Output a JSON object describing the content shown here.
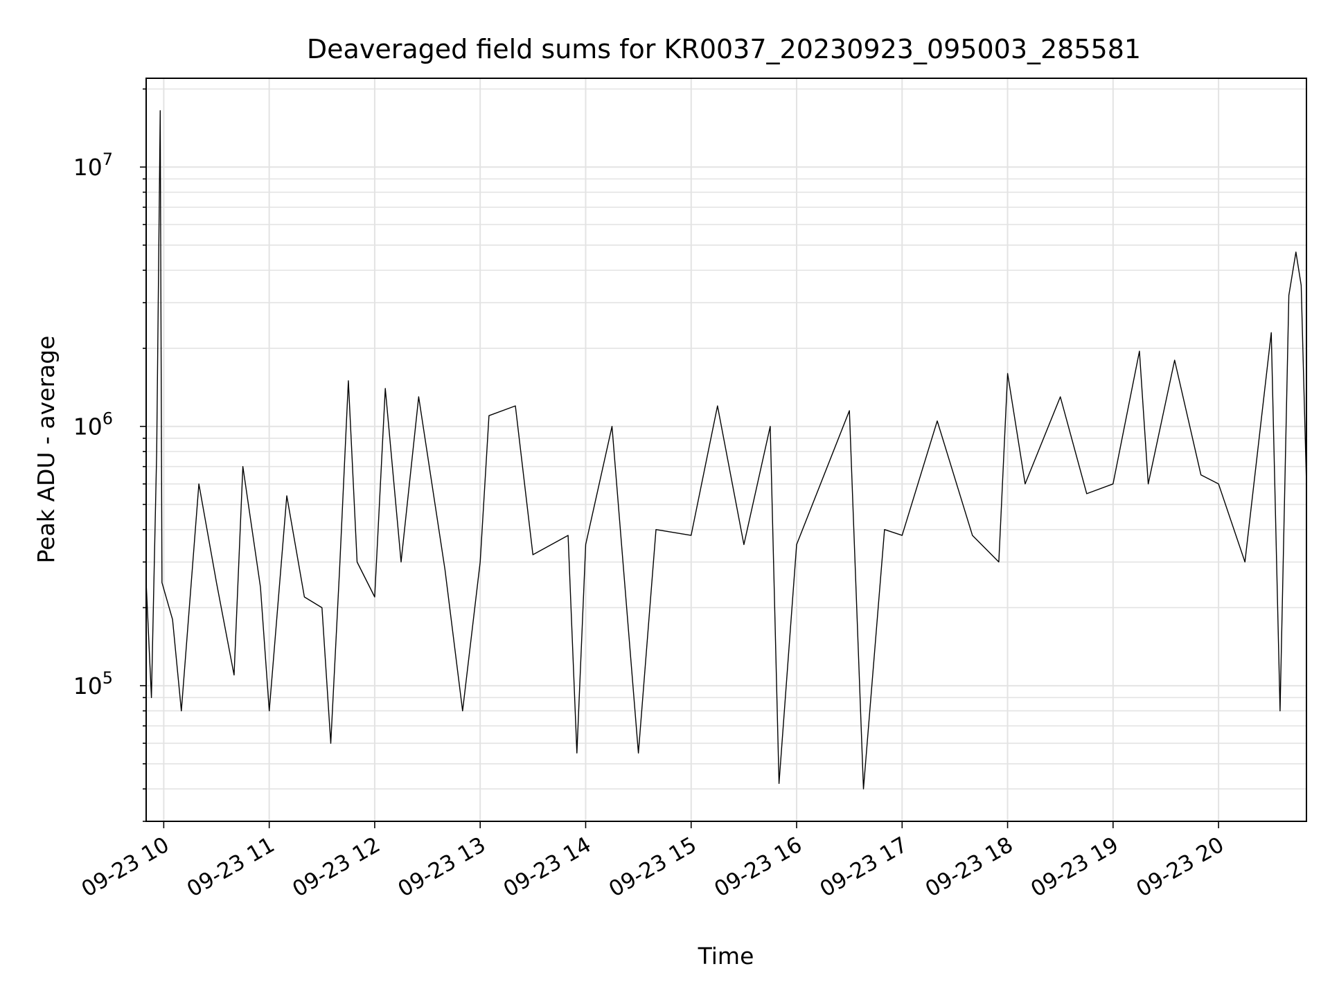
{
  "chart_data": {
    "type": "line",
    "title": "Deaveraged field sums for KR0037_20230923_095003_285581",
    "xlabel": "Time",
    "ylabel": "Peak ADU - average",
    "y_scale": "log",
    "grid": true,
    "legend": "none",
    "line_color": "#000000",
    "xlim": [
      "2023-09-23 09:50",
      "2023-09-23 20:50"
    ],
    "ylim": [
      30000,
      22000000
    ],
    "x_ticks": [
      {
        "value": "2023-09-23 10:00",
        "label": "09-23 10"
      },
      {
        "value": "2023-09-23 11:00",
        "label": "09-23 11"
      },
      {
        "value": "2023-09-23 12:00",
        "label": "09-23 12"
      },
      {
        "value": "2023-09-23 13:00",
        "label": "09-23 13"
      },
      {
        "value": "2023-09-23 14:00",
        "label": "09-23 14"
      },
      {
        "value": "2023-09-23 15:00",
        "label": "09-23 15"
      },
      {
        "value": "2023-09-23 16:00",
        "label": "09-23 16"
      },
      {
        "value": "2023-09-23 17:00",
        "label": "09-23 17"
      },
      {
        "value": "2023-09-23 18:00",
        "label": "09-23 18"
      },
      {
        "value": "2023-09-23 19:00",
        "label": "09-23 19"
      },
      {
        "value": "2023-09-23 20:00",
        "label": "09-23 20"
      }
    ],
    "y_ticks": [
      {
        "value": 100000,
        "base": "10",
        "exp": "5"
      },
      {
        "value": 1000000,
        "base": "10",
        "exp": "6"
      },
      {
        "value": 10000000,
        "base": "10",
        "exp": "7"
      }
    ],
    "series": [
      {
        "points": [
          [
            "2023-09-23 09:50",
            250000
          ],
          [
            "2023-09-23 09:53",
            90000
          ],
          [
            "2023-09-23 09:56",
            800000
          ],
          [
            "2023-09-23 09:58",
            16500000
          ],
          [
            "2023-09-23 09:59",
            250000
          ],
          [
            "2023-09-23 10:05",
            180000
          ],
          [
            "2023-09-23 10:10",
            80000
          ],
          [
            "2023-09-23 10:20",
            600000
          ],
          [
            "2023-09-23 10:30",
            250000
          ],
          [
            "2023-09-23 10:40",
            110000
          ],
          [
            "2023-09-23 10:45",
            700000
          ],
          [
            "2023-09-23 10:55",
            240000
          ],
          [
            "2023-09-23 11:00",
            80000
          ],
          [
            "2023-09-23 11:10",
            540000
          ],
          [
            "2023-09-23 11:20",
            220000
          ],
          [
            "2023-09-23 11:30",
            200000
          ],
          [
            "2023-09-23 11:35",
            60000
          ],
          [
            "2023-09-23 11:40",
            280000
          ],
          [
            "2023-09-23 11:45",
            1500000
          ],
          [
            "2023-09-23 11:50",
            300000
          ],
          [
            "2023-09-23 12:00",
            220000
          ],
          [
            "2023-09-23 12:06",
            1400000
          ],
          [
            "2023-09-23 12:15",
            300000
          ],
          [
            "2023-09-23 12:25",
            1300000
          ],
          [
            "2023-09-23 12:40",
            280000
          ],
          [
            "2023-09-23 12:50",
            80000
          ],
          [
            "2023-09-23 13:00",
            300000
          ],
          [
            "2023-09-23 13:05",
            1100000
          ],
          [
            "2023-09-23 13:20",
            1200000
          ],
          [
            "2023-09-23 13:30",
            320000
          ],
          [
            "2023-09-23 13:50",
            380000
          ],
          [
            "2023-09-23 13:55",
            55000
          ],
          [
            "2023-09-23 14:00",
            350000
          ],
          [
            "2023-09-23 14:15",
            1000000
          ],
          [
            "2023-09-23 14:30",
            55000
          ],
          [
            "2023-09-23 14:40",
            400000
          ],
          [
            "2023-09-23 15:00",
            380000
          ],
          [
            "2023-09-23 15:15",
            1200000
          ],
          [
            "2023-09-23 15:30",
            350000
          ],
          [
            "2023-09-23 15:45",
            1000000
          ],
          [
            "2023-09-23 15:50",
            42000
          ],
          [
            "2023-09-23 16:00",
            350000
          ],
          [
            "2023-09-23 16:30",
            1150000
          ],
          [
            "2023-09-23 16:38",
            40000
          ],
          [
            "2023-09-23 16:50",
            400000
          ],
          [
            "2023-09-23 17:00",
            380000
          ],
          [
            "2023-09-23 17:20",
            1050000
          ],
          [
            "2023-09-23 17:40",
            380000
          ],
          [
            "2023-09-23 17:55",
            300000
          ],
          [
            "2023-09-23 18:00",
            1600000
          ],
          [
            "2023-09-23 18:10",
            600000
          ],
          [
            "2023-09-23 18:30",
            1300000
          ],
          [
            "2023-09-23 18:45",
            550000
          ],
          [
            "2023-09-23 19:00",
            600000
          ],
          [
            "2023-09-23 19:15",
            1950000
          ],
          [
            "2023-09-23 19:20",
            600000
          ],
          [
            "2023-09-23 19:35",
            1800000
          ],
          [
            "2023-09-23 19:50",
            650000
          ],
          [
            "2023-09-23 20:00",
            600000
          ],
          [
            "2023-09-23 20:15",
            300000
          ],
          [
            "2023-09-23 20:30",
            2300000
          ],
          [
            "2023-09-23 20:35",
            80000
          ],
          [
            "2023-09-23 20:40",
            3200000
          ],
          [
            "2023-09-23 20:44",
            4700000
          ],
          [
            "2023-09-23 20:47",
            3500000
          ],
          [
            "2023-09-23 20:50",
            600000
          ]
        ]
      }
    ]
  }
}
